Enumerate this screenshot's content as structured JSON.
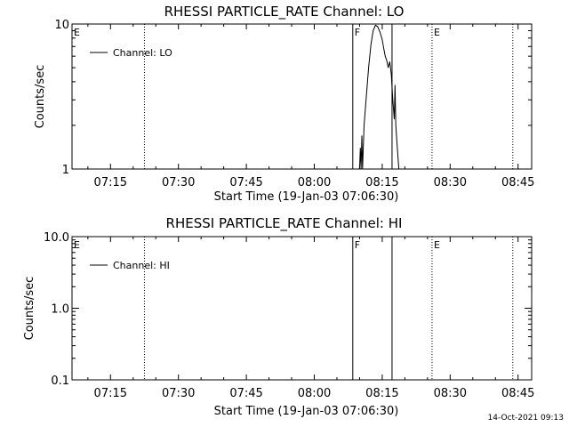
{
  "timestamp": "14-Oct-2021 09:13",
  "chart_data": [
    {
      "type": "line",
      "title": "RHESSI PARTICLE_RATE Channel: LO",
      "xlabel": "Start Time (19-Jan-03 07:06:30)",
      "ylabel": "Counts/sec",
      "yscale": "log",
      "ylim": [
        1,
        10
      ],
      "ytick_labels": [
        "1",
        "10"
      ],
      "xlim": [
        "07:06:30",
        "08:48:00"
      ],
      "xtick_labels": [
        "07:15",
        "07:30",
        "07:45",
        "08:00",
        "08:15",
        "08:30",
        "08:45"
      ],
      "grid": false,
      "legend": {
        "position": "top-left",
        "entries": [
          "Channel: LO"
        ]
      },
      "event_markers": [
        {
          "time": "07:06:30",
          "label": "E",
          "style": "dotted"
        },
        {
          "time": "07:22:30",
          "label": "",
          "style": "dotted"
        },
        {
          "time": "08:08:30",
          "label": "F",
          "style": "solid"
        },
        {
          "time": "08:17:10",
          "label": "",
          "style": "solid"
        },
        {
          "time": "08:26:00",
          "label": "E",
          "style": "dotted"
        },
        {
          "time": "08:43:50",
          "label": "",
          "style": "dotted"
        }
      ],
      "series": [
        {
          "name": "Channel: LO",
          "x": [
            "08:10:00",
            "08:10:10",
            "08:10:20",
            "08:10:30",
            "08:10:40",
            "08:11:00",
            "08:11:30",
            "08:12:00",
            "08:12:30",
            "08:13:00",
            "08:13:30",
            "08:14:00",
            "08:14:30",
            "08:15:00",
            "08:15:20",
            "08:15:40",
            "08:16:00",
            "08:16:20",
            "08:16:40",
            "08:17:00",
            "08:17:20",
            "08:17:40",
            "08:17:50",
            "08:18:00",
            "08:18:20",
            "08:18:40"
          ],
          "y": [
            1.0,
            1.4,
            1.0,
            1.7,
            1.0,
            2.0,
            3.2,
            5.0,
            7.2,
            9.0,
            9.8,
            9.6,
            8.8,
            7.8,
            6.8,
            6.0,
            5.6,
            5.0,
            5.5,
            4.5,
            3.0,
            2.2,
            3.8,
            2.0,
            1.4,
            1.0
          ]
        }
      ]
    },
    {
      "type": "line",
      "title": "RHESSI PARTICLE_RATE Channel: HI",
      "xlabel": "Start Time (19-Jan-03 07:06:30)",
      "ylabel": "Counts/sec",
      "yscale": "log",
      "ylim": [
        0.1,
        10
      ],
      "ytick_labels": [
        "0.1",
        "1.0",
        "10.0"
      ],
      "xlim": [
        "07:06:30",
        "08:48:00"
      ],
      "xtick_labels": [
        "07:15",
        "07:30",
        "07:45",
        "08:00",
        "08:15",
        "08:30",
        "08:45"
      ],
      "grid": false,
      "legend": {
        "position": "top-left",
        "entries": [
          "Channel: HI"
        ]
      },
      "event_markers": [
        {
          "time": "07:06:30",
          "label": "E",
          "style": "dotted"
        },
        {
          "time": "07:22:30",
          "label": "",
          "style": "dotted"
        },
        {
          "time": "08:08:30",
          "label": "F",
          "style": "solid"
        },
        {
          "time": "08:17:10",
          "label": "",
          "style": "solid"
        },
        {
          "time": "08:26:00",
          "label": "E",
          "style": "dotted"
        },
        {
          "time": "08:43:50",
          "label": "",
          "style": "dotted"
        }
      ],
      "series": [
        {
          "name": "Channel: HI",
          "x": [],
          "y": []
        }
      ]
    }
  ]
}
